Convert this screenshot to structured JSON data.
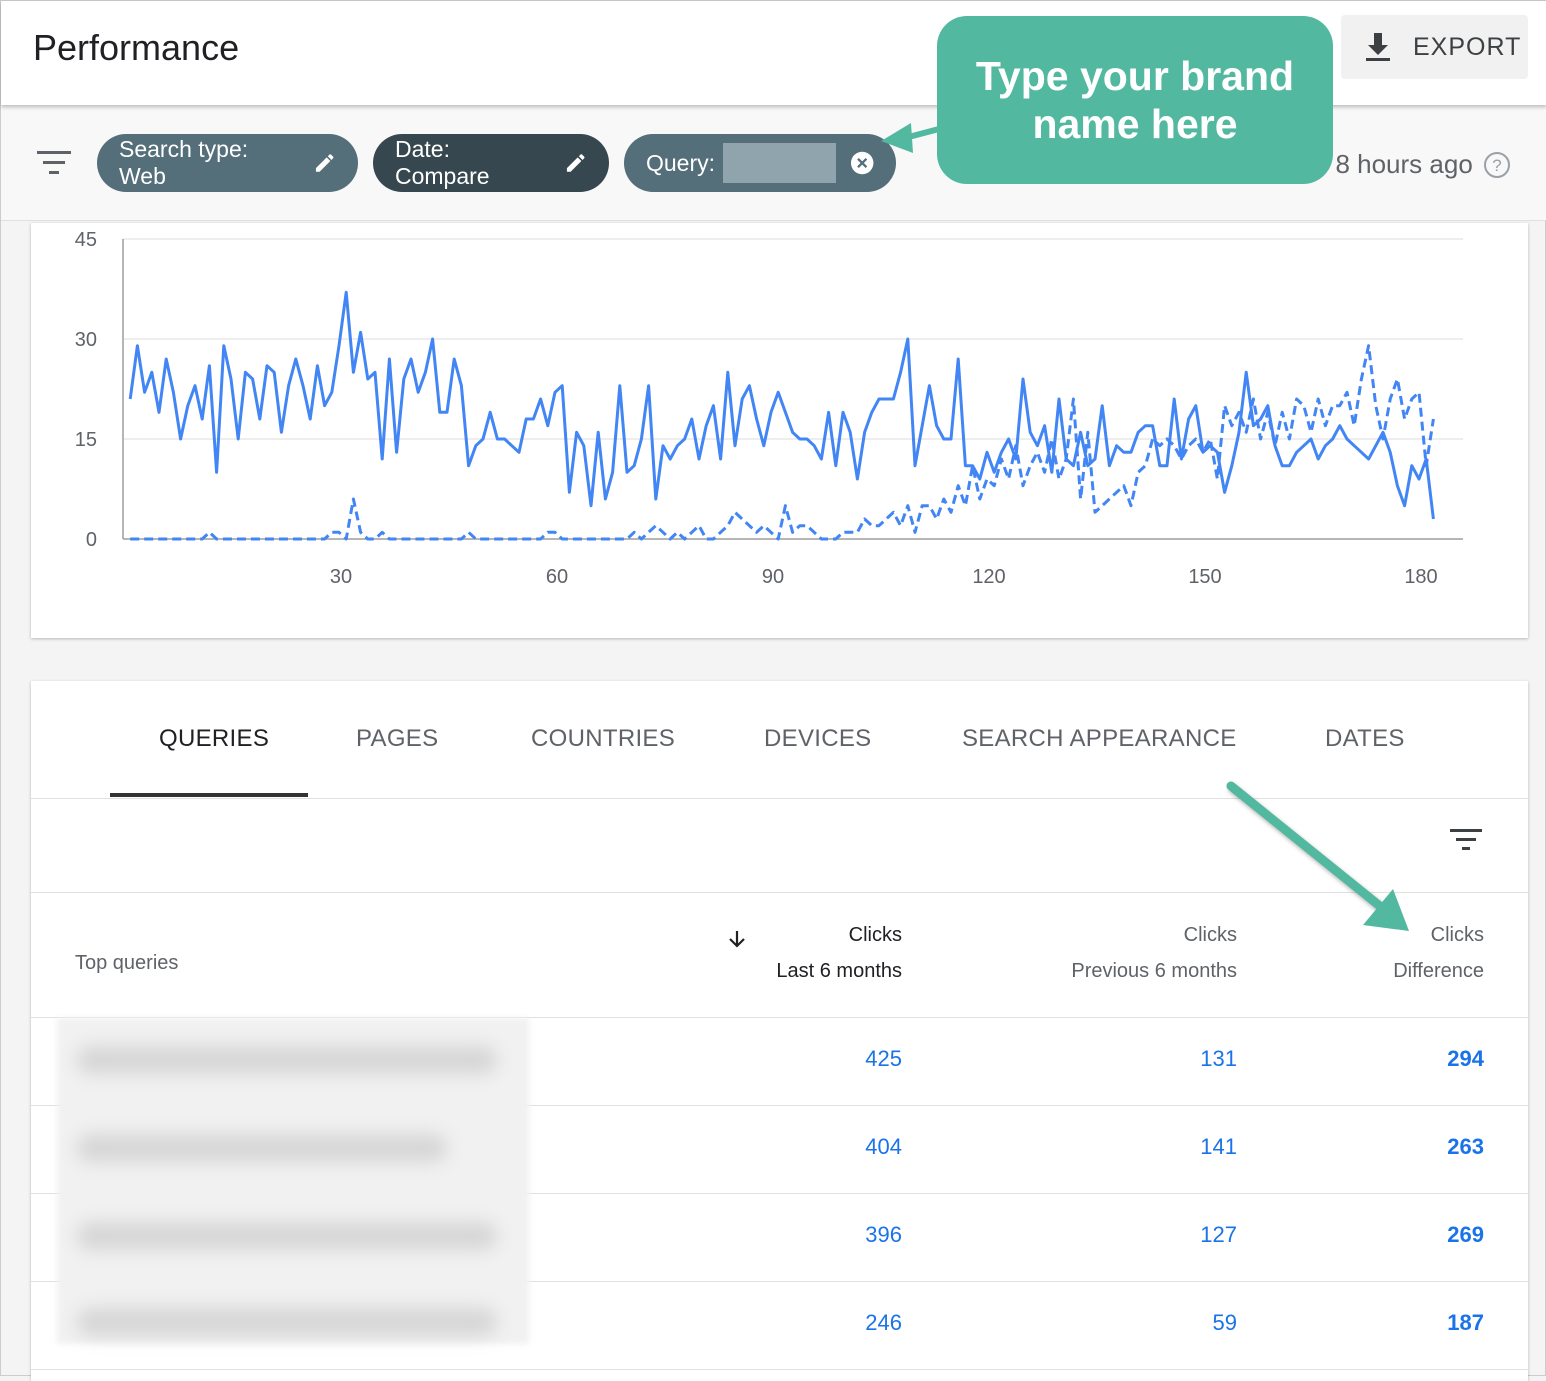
{
  "header": {
    "title": "Performance",
    "export_label": "EXPORT"
  },
  "filters": {
    "search_type": "Search type: Web",
    "date": "Date: Compare",
    "query": "Query:",
    "last_updated": ". 8 hours ago"
  },
  "callout": {
    "text": "Type your brand name here",
    "color": "#52b8a0"
  },
  "chart_data": {
    "type": "line",
    "ylim": [
      0,
      45
    ],
    "yticks": [
      "0",
      "15",
      "30",
      "45"
    ],
    "xticks": [
      "30",
      "60",
      "90",
      "120",
      "150",
      "180"
    ],
    "grid": true,
    "color": "#4285f4",
    "series": [
      {
        "style": "solid",
        "values": [
          21,
          29,
          22,
          25,
          19,
          27,
          22,
          15,
          20,
          23,
          18,
          26,
          10,
          29,
          24,
          15,
          25,
          24,
          18,
          26,
          25,
          16,
          23,
          27,
          23,
          18,
          26,
          20,
          22,
          29,
          37,
          25,
          31,
          24,
          25,
          12,
          27,
          13,
          24,
          27,
          22,
          25,
          30,
          19,
          19,
          27,
          23,
          11,
          14,
          15,
          19,
          15,
          15,
          14,
          13,
          18,
          18,
          21,
          17,
          22,
          23,
          7,
          16,
          14,
          5,
          16,
          6,
          10,
          23,
          10,
          11,
          15,
          23,
          6,
          14,
          12,
          14,
          15,
          18,
          12,
          17,
          20,
          12,
          25,
          14,
          21,
          23,
          18,
          14,
          19,
          22,
          19,
          16,
          15,
          15,
          14,
          12,
          19,
          11,
          19,
          16,
          9,
          16,
          19,
          21,
          21,
          21,
          25,
          30,
          11,
          17,
          23,
          17,
          15,
          15,
          27,
          11,
          11,
          9,
          13,
          10,
          13,
          15,
          12,
          24,
          16,
          14,
          17,
          10,
          21,
          12,
          11,
          16,
          11,
          12,
          20,
          11,
          14,
          13,
          13,
          16,
          17,
          17,
          11,
          11,
          21,
          12,
          18,
          20,
          13,
          14,
          13,
          7,
          11,
          16,
          25,
          17,
          18,
          20,
          14,
          11,
          11,
          13,
          14,
          15,
          12,
          14,
          15,
          17,
          15,
          14,
          13,
          12,
          14,
          16,
          13,
          8,
          5,
          11,
          9,
          12,
          3
        ]
      },
      {
        "style": "dashed",
        "values": [
          0,
          0,
          0,
          0,
          0,
          0,
          0,
          0,
          0,
          0,
          0,
          1,
          0,
          0,
          0,
          0,
          0,
          0,
          0,
          0,
          0,
          0,
          0,
          0,
          0,
          0,
          0,
          0,
          1,
          1,
          0,
          6,
          1,
          0,
          0,
          1,
          0,
          0,
          0,
          0,
          0,
          0,
          0,
          0,
          0,
          0,
          0,
          1,
          0,
          0,
          0,
          0,
          0,
          0,
          0,
          0,
          0,
          0,
          1,
          1,
          0,
          0,
          0,
          0,
          0,
          0,
          0,
          0,
          0,
          0,
          1,
          0,
          1,
          2,
          1,
          0,
          1,
          0,
          1,
          2,
          0,
          0,
          1,
          2,
          4,
          3,
          2,
          1,
          2,
          1,
          0,
          5,
          1,
          2,
          2,
          1,
          0,
          0,
          0,
          1,
          1,
          1,
          3,
          2,
          2,
          3,
          4,
          2,
          5,
          1,
          5,
          5,
          3,
          6,
          4,
          8,
          5,
          11,
          6,
          9,
          8,
          12,
          9,
          14,
          8,
          11,
          13,
          10,
          15,
          9,
          12,
          21,
          6,
          16,
          4,
          5,
          6,
          7,
          8,
          5,
          10,
          11,
          15,
          14,
          15,
          14,
          12,
          14,
          15,
          13,
          15,
          9,
          20,
          17,
          19,
          16,
          21,
          15,
          19,
          14,
          19,
          15,
          21,
          20,
          16,
          21,
          17,
          20,
          20,
          22,
          17,
          24,
          29,
          20,
          15,
          21,
          24,
          18,
          21,
          22,
          11,
          18
        ]
      }
    ]
  },
  "tabs": [
    "QUERIES",
    "PAGES",
    "COUNTRIES",
    "DEVICES",
    "SEARCH APPEARANCE",
    "DATES"
  ],
  "table": {
    "col_query": "Top queries",
    "col1": [
      "Clicks",
      "Last 6 months"
    ],
    "col2": [
      "Clicks",
      "Previous 6 months"
    ],
    "col3": [
      "Clicks",
      "Difference"
    ],
    "rows": [
      [
        "425",
        "131",
        "294"
      ],
      [
        "404",
        "141",
        "263"
      ],
      [
        "396",
        "127",
        "269"
      ],
      [
        "246",
        "59",
        "187"
      ]
    ]
  }
}
